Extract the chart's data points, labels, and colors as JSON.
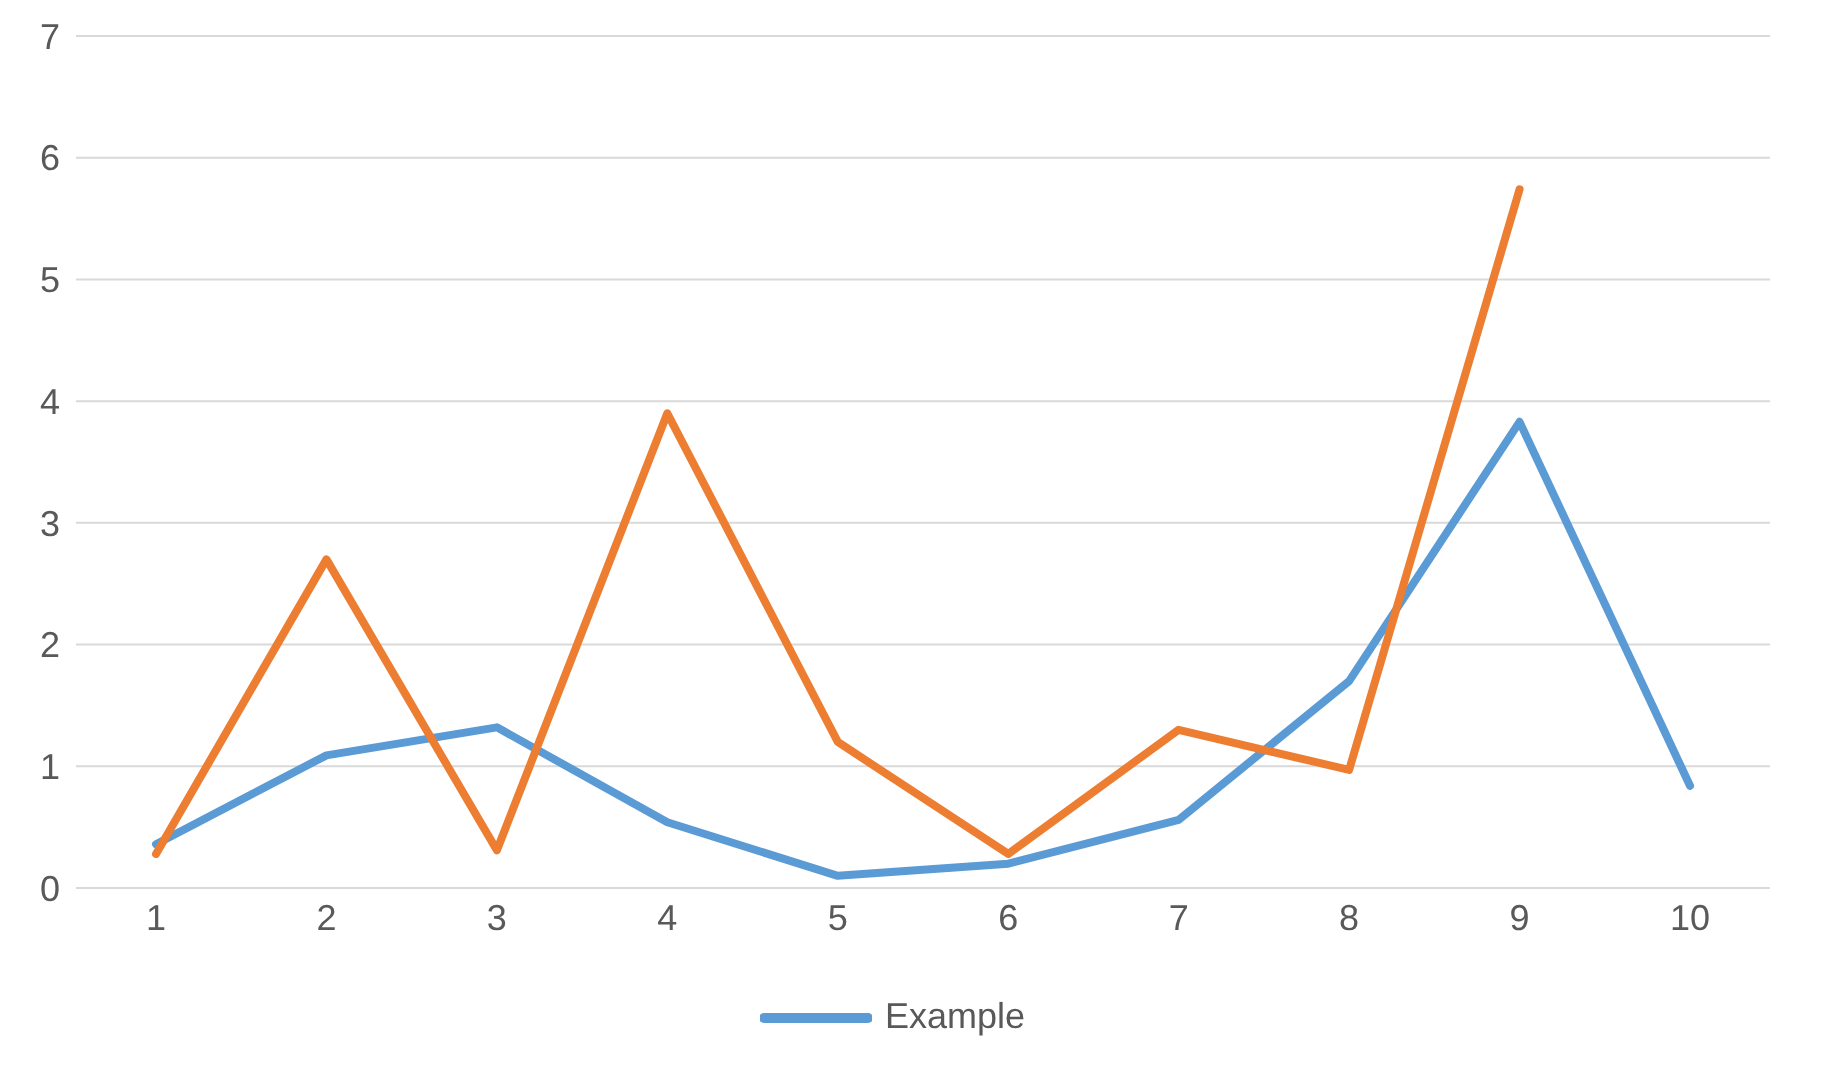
{
  "chart_data": {
    "type": "line",
    "categories": [
      "1",
      "2",
      "3",
      "4",
      "5",
      "6",
      "7",
      "8",
      "9",
      "10"
    ],
    "series": [
      {
        "name": "Example",
        "color": "#5b9bd5",
        "values": [
          0.36,
          1.09,
          1.32,
          0.54,
          0.1,
          0.2,
          0.56,
          1.7,
          3.83,
          0.84
        ]
      },
      {
        "color": "#ed7d31",
        "values": [
          0.28,
          2.7,
          0.31,
          3.9,
          1.2,
          0.28,
          1.3,
          0.97,
          5.74,
          null
        ]
      }
    ],
    "ylim": [
      0,
      7
    ],
    "yticks": [
      0,
      1,
      2,
      3,
      4,
      5,
      6,
      7
    ],
    "grid": "y",
    "legend": "bottom",
    "marker": "none",
    "line_style": "solid"
  }
}
